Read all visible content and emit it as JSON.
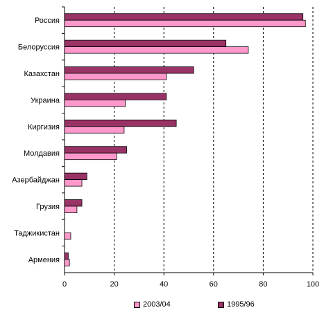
{
  "chart_data": {
    "type": "bar",
    "orientation": "horizontal",
    "categories": [
      "Россия",
      "Белоруссия",
      "Казахстан",
      "Украина",
      "Киргизия",
      "Молдавия",
      "Азербайджан",
      "Грузия",
      "Таджикистан",
      "Армения"
    ],
    "series": [
      {
        "name": "1995/96",
        "color": "#993366",
        "values": [
          96,
          65,
          52,
          41,
          45,
          25,
          9,
          7,
          0,
          1.5
        ]
      },
      {
        "name": "2003/04",
        "color": "#ff99cc",
        "values": [
          97,
          74,
          41,
          24.5,
          24,
          21,
          7,
          5,
          2.5,
          2
        ]
      }
    ],
    "xlim": [
      0,
      100
    ],
    "xticks": [
      "0",
      "20",
      "40",
      "60",
      "80",
      "100"
    ],
    "grid": "vertical dashed lines",
    "legend_position": "bottom",
    "legend_order": [
      "2003/04",
      "1995/96"
    ]
  }
}
